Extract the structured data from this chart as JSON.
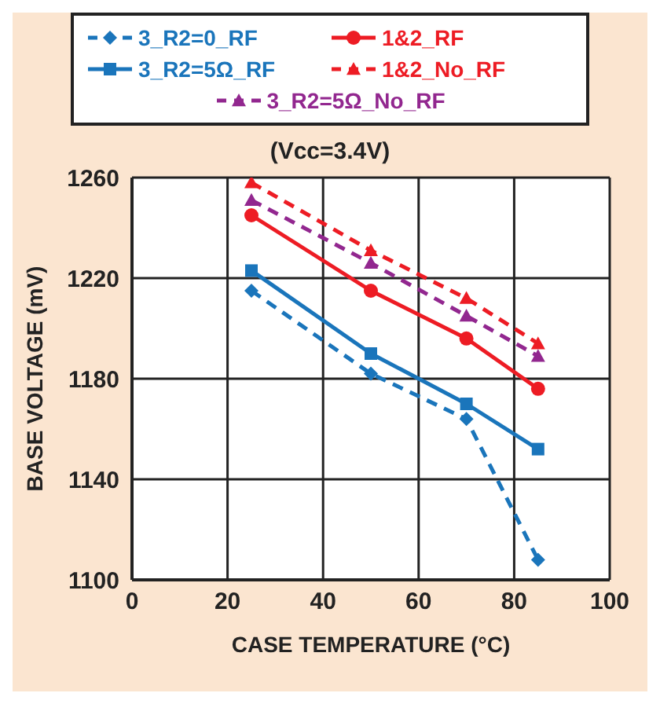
{
  "chart_data": {
    "type": "line",
    "subtitle": "(Vcc=3.4V)",
    "xlabel": "CASE TEMPERATURE (°C)",
    "ylabel": "BASE VOLTAGE (mV)",
    "x": [
      25,
      50,
      70,
      85
    ],
    "series": [
      {
        "name": "3_R2=0_RF",
        "color": "#1a75bb",
        "values": [
          1215,
          1182,
          1164,
          1108
        ],
        "marker": "diamond",
        "line_style": "dashed"
      },
      {
        "name": "1&2_RF",
        "color": "#ed1c24",
        "values": [
          1245,
          1215,
          1196,
          1176
        ],
        "marker": "circle",
        "line_style": "solid"
      },
      {
        "name": "3_R2=5Ω_RF",
        "color": "#1a75bb",
        "values": [
          1223,
          1190,
          1170,
          1152
        ],
        "marker": "square",
        "line_style": "solid"
      },
      {
        "name": "1&2_No_RF",
        "color": "#ed1c24",
        "values": [
          1258,
          1231,
          1212,
          1194
        ],
        "marker": "triangle",
        "line_style": "dashed"
      },
      {
        "name": "3_R2=5Ω_No_RF",
        "color": "#92278f",
        "values": [
          1251,
          1226,
          1205,
          1189
        ],
        "marker": "triangle",
        "line_style": "dashed"
      }
    ],
    "xlim": [
      0,
      100
    ],
    "xticks": [
      0,
      20,
      40,
      60,
      80,
      100
    ],
    "ylim": [
      1100,
      1260
    ],
    "yticks": [
      1100,
      1140,
      1180,
      1220,
      1260
    ],
    "grid": true,
    "legend": "top"
  }
}
